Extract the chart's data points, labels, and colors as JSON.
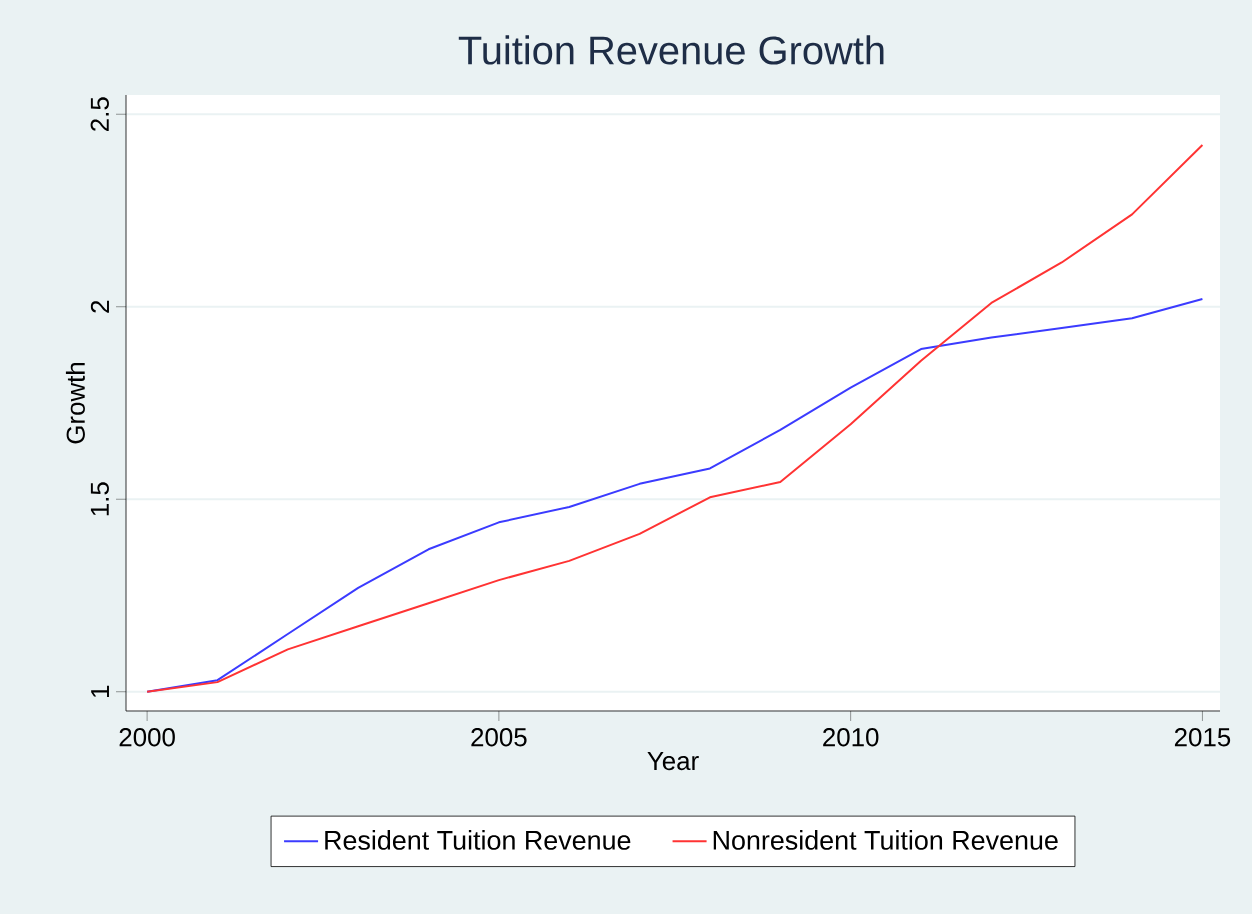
{
  "chart_data": {
    "type": "line",
    "title": "Tuition Revenue Growth",
    "xlabel": "Year",
    "ylabel": "Growth",
    "x": [
      2000,
      2001,
      2002,
      2003,
      2004,
      2005,
      2006,
      2007,
      2008,
      2009,
      2010,
      2011,
      2012,
      2013,
      2014,
      2015
    ],
    "series": [
      {
        "name": "Resident Tuition Revenue",
        "color": "#3b3bff",
        "values": [
          1.0,
          1.03,
          1.15,
          1.27,
          1.37,
          1.44,
          1.48,
          1.54,
          1.58,
          1.68,
          1.79,
          1.89,
          1.92,
          1.945,
          1.97,
          2.02
        ]
      },
      {
        "name": "Nonresident Tuition Revenue",
        "color": "#ff3333",
        "values": [
          1.0,
          1.025,
          1.11,
          1.17,
          1.23,
          1.29,
          1.34,
          1.41,
          1.505,
          1.545,
          1.695,
          1.86,
          2.01,
          2.115,
          2.24,
          2.42
        ]
      }
    ],
    "xlim": [
      1999.7,
      2015.25
    ],
    "ylim": [
      0.95,
      2.55
    ],
    "xticks": [
      2000,
      2005,
      2010,
      2015
    ],
    "yticks": [
      1,
      1.5,
      2,
      2.5
    ],
    "grid": "y",
    "legend": "bottom",
    "marker": "none",
    "line_style": "solid"
  }
}
